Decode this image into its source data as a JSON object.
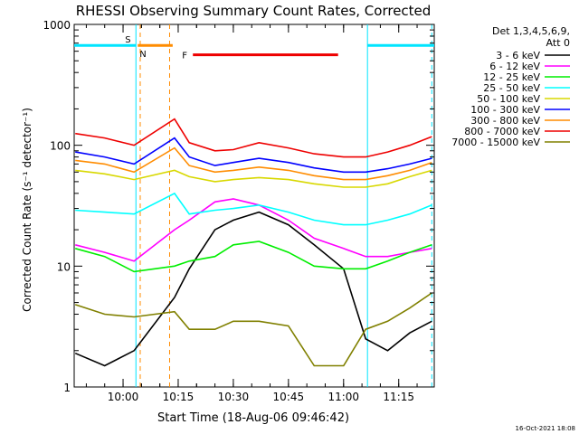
{
  "chart_data": {
    "type": "line",
    "title": "RHESSI Observing Summary Count Rates, Corrected",
    "xlabel": "Start Time (18-Aug-06 09:46:42)",
    "ylabel": "Corrected Count Rate (s⁻¹ detector⁻¹)",
    "y_scale": "log",
    "ylim": [
      1,
      1000
    ],
    "xlim": [
      "09:46:42",
      "11:24:40"
    ],
    "x_ticks": [
      "10:00",
      "10:15",
      "10:30",
      "10:45",
      "11:00",
      "11:15"
    ],
    "y_ticks": [
      "1",
      "10",
      "100",
      "1000"
    ],
    "legend_header": [
      "Det 1,3,4,5,6,9,",
      "Att 0"
    ],
    "legend_position": "right",
    "footer": "16-Oct-2021 18:08",
    "flags": [
      {
        "label": "S",
        "color": "#ff8c00",
        "start": "10:04:00",
        "end": "10:13:30",
        "level": 670
      },
      {
        "label": "N",
        "color": "#00e5ff",
        "start": "09:46:42",
        "end": "10:03:30",
        "level": 670
      },
      {
        "label": "N",
        "color": "#00e5ff",
        "start": "11:06:30",
        "end": "11:24:40",
        "level": 670
      },
      {
        "label": "F",
        "color": "#ee0000",
        "start": "10:19:00",
        "end": "10:58:30",
        "level": 560
      }
    ],
    "vertical_lines": [
      {
        "time": "10:03:30",
        "color": "#00e5ff",
        "style": "solid"
      },
      {
        "time": "10:04:40",
        "color": "#ff8c00",
        "style": "dashed"
      },
      {
        "time": "10:12:40",
        "color": "#ff8c00",
        "style": "dashed"
      },
      {
        "time": "11:06:30",
        "color": "#00e5ff",
        "style": "solid"
      },
      {
        "time": "11:24:00",
        "color": "#00e5ff",
        "style": "dashed"
      }
    ],
    "x": [
      "09:47",
      "09:55",
      "10:03",
      "10:14",
      "10:18",
      "10:25",
      "10:30",
      "10:37",
      "10:45",
      "10:52",
      "11:00",
      "11:06",
      "11:12",
      "11:18",
      "11:24"
    ],
    "series": [
      {
        "name": "3 - 6 keV",
        "color": "#000000",
        "values": [
          1.9,
          1.5,
          2.0,
          5.5,
          9.5,
          20,
          24,
          28,
          22,
          15,
          9.5,
          2.5,
          2.0,
          2.8,
          3.5
        ]
      },
      {
        "name": "6 - 12 keV",
        "color": "#ff00ff",
        "values": [
          15,
          13,
          11,
          20,
          24,
          34,
          36,
          32,
          24,
          17,
          14,
          12,
          12,
          13,
          14
        ]
      },
      {
        "name": "12 - 25 keV",
        "color": "#00ee00",
        "values": [
          14,
          12,
          9,
          10,
          11,
          12,
          15,
          16,
          13,
          10,
          9.5,
          9.5,
          11,
          13,
          15
        ]
      },
      {
        "name": "25 - 50 keV",
        "color": "#00ffff",
        "values": [
          29,
          28,
          27,
          40,
          27,
          29,
          30,
          32,
          28,
          24,
          22,
          22,
          24,
          27,
          32
        ]
      },
      {
        "name": "50 - 100 keV",
        "color": "#d8d800",
        "values": [
          62,
          58,
          52,
          62,
          55,
          50,
          52,
          54,
          52,
          48,
          45,
          45,
          48,
          55,
          62
        ]
      },
      {
        "name": "100 - 300 keV",
        "color": "#0000ff",
        "values": [
          88,
          80,
          70,
          115,
          80,
          68,
          72,
          78,
          72,
          65,
          60,
          60,
          64,
          70,
          78
        ]
      },
      {
        "name": "300 - 800 keV",
        "color": "#ff8c00",
        "values": [
          75,
          70,
          60,
          95,
          68,
          60,
          62,
          66,
          62,
          56,
          52,
          52,
          56,
          62,
          72
        ]
      },
      {
        "name": "800 - 7000 keV",
        "color": "#ee0000",
        "values": [
          125,
          115,
          100,
          165,
          105,
          90,
          92,
          105,
          95,
          85,
          80,
          80,
          88,
          100,
          118
        ]
      },
      {
        "name": "7000 - 15000 keV",
        "color": "#808000",
        "values": [
          4.8,
          4.0,
          3.8,
          4.2,
          3.0,
          3.0,
          3.5,
          3.5,
          3.2,
          1.5,
          1.5,
          3.0,
          3.5,
          4.5,
          6.0
        ]
      }
    ]
  }
}
